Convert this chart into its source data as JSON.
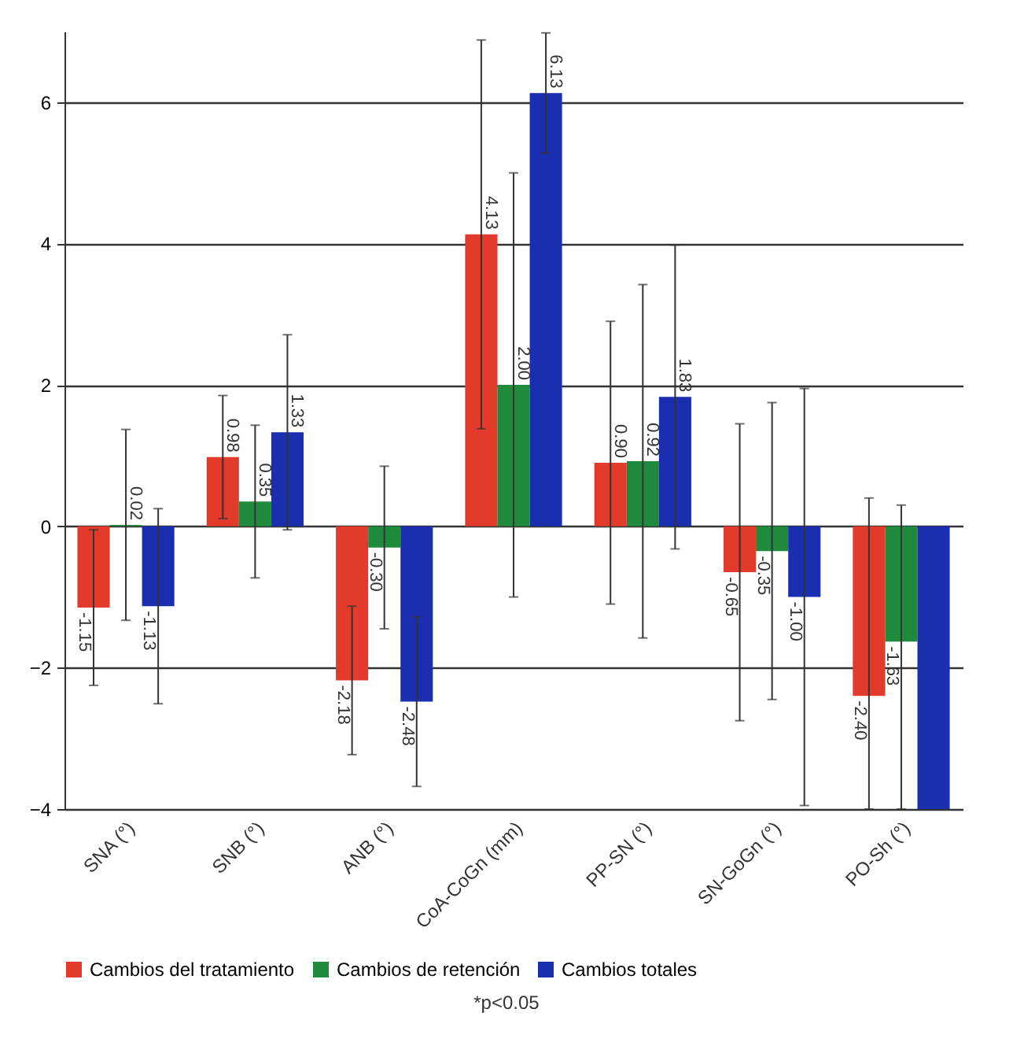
{
  "chart_data": {
    "type": "bar",
    "categories": [
      "SNA (°)",
      "SNB (°)",
      "ANB (°)",
      "CoA-CoGn (mm)",
      "PP-SN (°)",
      "SN-GoGn (°)",
      "PO-Sh (°)"
    ],
    "series": [
      {
        "name": "Cambios del tratamiento",
        "color": "#e43a2c",
        "values": [
          -1.15,
          0.98,
          -2.18,
          4.13,
          0.9,
          -0.65,
          -2.4
        ],
        "errors": [
          1.1,
          0.87,
          1.05,
          2.75,
          2.0,
          2.1,
          [
            -4,
            0.4
          ]
        ],
        "value_labels": [
          "-1.15",
          "0.98",
          "-2.18",
          "4.13",
          "0.90",
          "-0.65",
          "-2.40"
        ]
      },
      {
        "name": "Cambios de retención",
        "color": "#1f8a3b",
        "values": [
          0.02,
          0.35,
          -0.3,
          2.0,
          0.92,
          -0.35,
          -1.63
        ],
        "errors": [
          1.35,
          1.08,
          1.15,
          3.0,
          2.5,
          2.1,
          [
            -4,
            0.3
          ]
        ],
        "value_labels": [
          "0.02",
          "0.35",
          "-0.30",
          "2.00",
          "0.92",
          "-0.35",
          "-1.63"
        ]
      },
      {
        "name": "Cambios totales",
        "color": "#1a2eb0",
        "values": [
          -1.13,
          1.33,
          -2.48,
          6.13,
          1.83,
          -1.0,
          -4.0
        ],
        "errors": [
          1.38,
          1.38,
          1.2,
          0.85,
          2.15,
          2.95,
          null
        ],
        "value_labels": [
          "-1.13",
          "1.33",
          "-2.48",
          "6.13",
          "1.83",
          "-1.00",
          null
        ]
      }
    ],
    "ylim": [
      -4,
      7
    ],
    "yticks": [
      -4,
      -2,
      0,
      2,
      4,
      6
    ],
    "grid": "y",
    "legend": "bottom",
    "annotations": [
      "*p<0.05"
    ]
  }
}
